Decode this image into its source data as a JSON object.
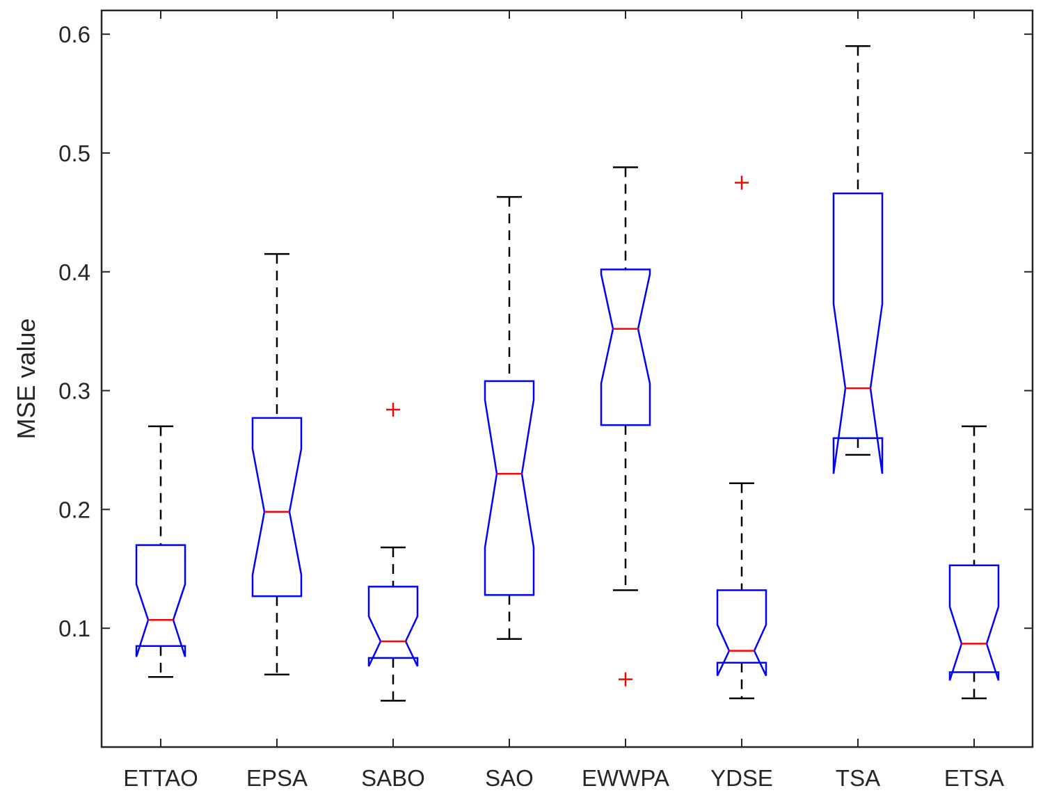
{
  "chart_data": {
    "type": "boxplot",
    "title": "",
    "xlabel": "",
    "ylabel": "MSE value",
    "ylim": [
      0,
      0.62
    ],
    "yticks": [
      0.1,
      0.2,
      0.3,
      0.4,
      0.5,
      0.6
    ],
    "ytick_labels": [
      "0.1",
      "0.2",
      "0.3",
      "0.4",
      "0.5",
      "0.6"
    ],
    "grid": false,
    "notched": true,
    "categories": [
      "ETTAO",
      "EPSA",
      "SABO",
      "SAO",
      "EWWPA",
      "YDSE",
      "TSA",
      "ETSA"
    ],
    "boxes": [
      {
        "name": "ETTAO",
        "whisker_low": 0.059,
        "q1": 0.085,
        "median": 0.107,
        "q3": 0.17,
        "whisker_high": 0.27,
        "notch_low": 0.076,
        "notch_high": 0.137,
        "outliers": []
      },
      {
        "name": "EPSA",
        "whisker_low": 0.061,
        "q1": 0.127,
        "median": 0.198,
        "q3": 0.277,
        "whisker_high": 0.415,
        "notch_low": 0.145,
        "notch_high": 0.251,
        "outliers": []
      },
      {
        "name": "SABO",
        "whisker_low": 0.039,
        "q1": 0.075,
        "median": 0.089,
        "q3": 0.135,
        "whisker_high": 0.168,
        "notch_low": 0.068,
        "notch_high": 0.11,
        "outliers": [
          0.284
        ]
      },
      {
        "name": "SAO",
        "whisker_low": 0.091,
        "q1": 0.128,
        "median": 0.23,
        "q3": 0.308,
        "whisker_high": 0.463,
        "notch_low": 0.168,
        "notch_high": 0.292,
        "outliers": []
      },
      {
        "name": "EWWPA",
        "whisker_low": 0.132,
        "q1": 0.271,
        "median": 0.352,
        "q3": 0.402,
        "whisker_high": 0.488,
        "notch_low": 0.306,
        "notch_high": 0.398,
        "outliers": [
          0.057
        ]
      },
      {
        "name": "YDSE",
        "whisker_low": 0.041,
        "q1": 0.071,
        "median": 0.081,
        "q3": 0.132,
        "whisker_high": 0.222,
        "notch_low": 0.06,
        "notch_high": 0.103,
        "outliers": [
          0.475
        ]
      },
      {
        "name": "TSA",
        "whisker_low": 0.246,
        "q1": 0.26,
        "median": 0.302,
        "q3": 0.466,
        "whisker_high": 0.59,
        "notch_low": 0.23,
        "notch_high": 0.373,
        "outliers": []
      },
      {
        "name": "ETSA",
        "whisker_low": 0.041,
        "q1": 0.063,
        "median": 0.087,
        "q3": 0.153,
        "whisker_high": 0.27,
        "notch_low": 0.056,
        "notch_high": 0.118,
        "outliers": []
      }
    ],
    "colors": {
      "box": "#0000ff",
      "median": "#ff0000",
      "whisker": "#000000",
      "outlier": "#ff0000",
      "axis": "#262626"
    }
  }
}
